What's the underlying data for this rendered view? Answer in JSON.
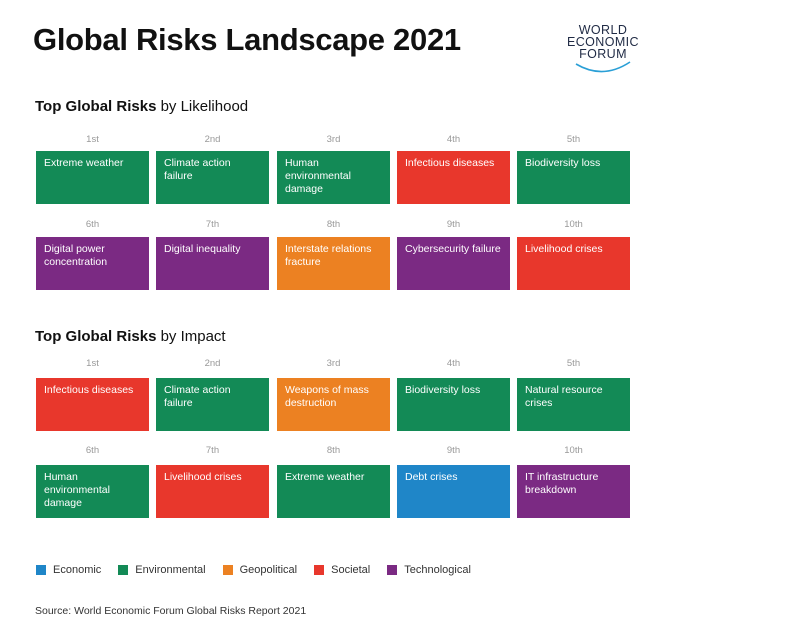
{
  "title": "Global Risks Landscape 2021",
  "logo": {
    "line1": "WORLD",
    "line2": "ECONOMIC",
    "line3": "FORUM"
  },
  "colors": {
    "Economic": "#1f86c8",
    "Environmental": "#138a56",
    "Geopolitical": "#ec8122",
    "Societal": "#e8372c",
    "Technological": "#7b2a83"
  },
  "chart_data": {
    "type": "table",
    "legend": [
      "Economic",
      "Environmental",
      "Geopolitical",
      "Societal",
      "Technological"
    ],
    "sections": [
      {
        "heading_bold": "Top Global Risks",
        "heading_rest": "by Likelihood",
        "ranks": [
          "1st",
          "2nd",
          "3rd",
          "4th",
          "5th",
          "6th",
          "7th",
          "8th",
          "9th",
          "10th"
        ],
        "risks": [
          {
            "label": "Extreme weather",
            "category": "Environmental"
          },
          {
            "label": "Climate action failure",
            "category": "Environmental"
          },
          {
            "label": "Human environmental damage",
            "category": "Environmental"
          },
          {
            "label": "Infectious diseases",
            "category": "Societal"
          },
          {
            "label": "Biodiversity loss",
            "category": "Environmental"
          },
          {
            "label": "Digital power concentration",
            "category": "Technological"
          },
          {
            "label": "Digital inequality",
            "category": "Technological"
          },
          {
            "label": "Interstate relations fracture",
            "category": "Geopolitical"
          },
          {
            "label": "Cybersecurity failure",
            "category": "Technological"
          },
          {
            "label": "Livelihood crises",
            "category": "Societal"
          }
        ]
      },
      {
        "heading_bold": "Top Global Risks",
        "heading_rest": "by Impact",
        "ranks": [
          "1st",
          "2nd",
          "3rd",
          "4th",
          "5th",
          "6th",
          "7th",
          "8th",
          "9th",
          "10th"
        ],
        "risks": [
          {
            "label": "Infectious diseases",
            "category": "Societal"
          },
          {
            "label": "Climate action failure",
            "category": "Environmental"
          },
          {
            "label": "Weapons of mass destruction",
            "category": "Geopolitical"
          },
          {
            "label": "Biodiversity loss",
            "category": "Environmental"
          },
          {
            "label": "Natural resource crises",
            "category": "Environmental"
          },
          {
            "label": "Human environmental damage",
            "category": "Environmental"
          },
          {
            "label": "Livelihood crises",
            "category": "Societal"
          },
          {
            "label": "Extreme weather",
            "category": "Environmental"
          },
          {
            "label": "Debt crises",
            "category": "Economic"
          },
          {
            "label": "IT infrastructure breakdown",
            "category": "Technological"
          }
        ]
      }
    ]
  },
  "source": "Source: World Economic Forum Global Risks Report 2021"
}
